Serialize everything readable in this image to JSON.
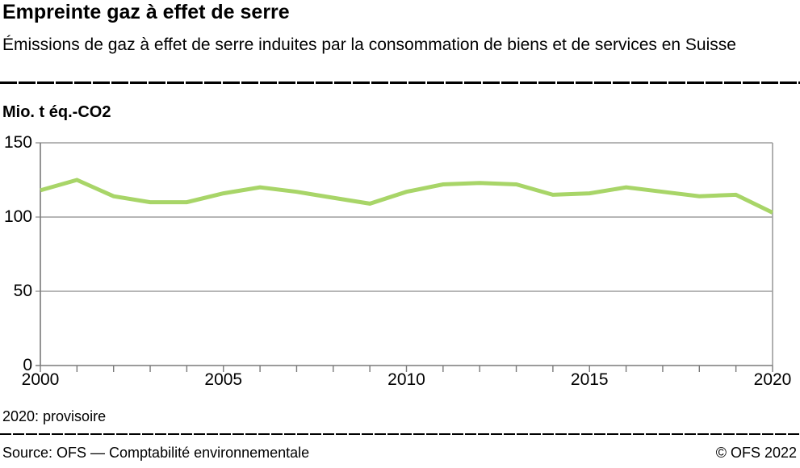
{
  "header": {
    "title": "Empreinte gaz à effet de serre",
    "subtitle": "Émissions de gaz à effet de serre induites par la consommation de biens et de services en Suisse"
  },
  "chart": {
    "unit_label": "Mio. t éq.-CO2"
  },
  "chart_data": {
    "type": "line",
    "title": "Empreinte gaz à effet de serre",
    "ylabel": "Mio. t éq.-CO2",
    "x": [
      2000,
      2001,
      2002,
      2003,
      2004,
      2005,
      2006,
      2007,
      2008,
      2009,
      2010,
      2011,
      2012,
      2013,
      2014,
      2015,
      2016,
      2017,
      2018,
      2019,
      2020
    ],
    "series": [
      {
        "name": "Émissions de gaz à effet de serre induites par la consommation",
        "values": [
          118,
          125,
          114,
          110,
          110,
          116,
          120,
          117,
          113,
          109,
          117,
          122,
          123,
          122,
          115,
          116,
          120,
          117,
          114,
          115,
          103
        ]
      }
    ],
    "xlim": [
      2000,
      2020
    ],
    "ylim": [
      0,
      150
    ],
    "yticks": [
      0,
      50,
      100,
      150
    ],
    "xticks": [
      2000,
      2005,
      2010,
      2015,
      2020
    ],
    "grid": true,
    "legend_position": "none",
    "line_color": "#a8d568",
    "axis_color": "#7a7a7a",
    "grid_color": "#9d9d9d"
  },
  "footer": {
    "note": "2020: provisoire",
    "source": "Source: OFS — Comptabilité environnementale",
    "copyright": "© OFS 2022"
  }
}
